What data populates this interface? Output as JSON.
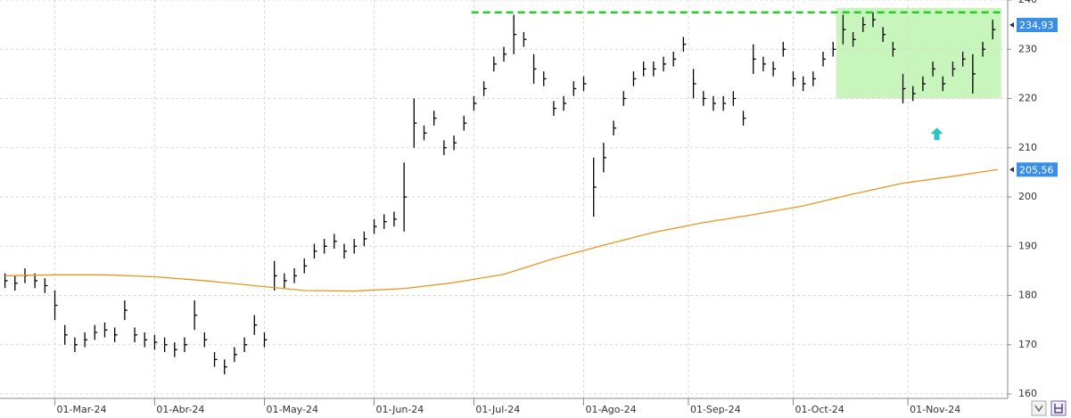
{
  "chart_data": {
    "type": "ohlc",
    "color": "#000000",
    "grid": true,
    "xlim": [
      -11,
      191
    ],
    "ylim": [
      159.1,
      240
    ],
    "yticks": [
      160,
      170,
      180,
      190,
      200,
      210,
      220,
      230,
      240
    ],
    "xticks": [
      {
        "value": 0,
        "label": "01-Mar-24"
      },
      {
        "value": 20,
        "label": "01-Abr-24"
      },
      {
        "value": 42,
        "label": "01-May-24"
      },
      {
        "value": 64,
        "label": "01-Jun-24"
      },
      {
        "value": 84,
        "label": "01-Jul-24"
      },
      {
        "value": 106,
        "label": "01-Ago-24"
      },
      {
        "value": 127,
        "label": "01-Sep-24"
      },
      {
        "value": 148,
        "label": "01-Oct-24"
      },
      {
        "value": 171,
        "label": "01-Nov-24"
      }
    ],
    "x": [
      -10,
      -8,
      -6,
      -4,
      -2,
      0,
      2,
      4,
      6,
      8,
      10,
      12,
      14,
      16,
      18,
      20,
      22,
      24,
      26,
      28,
      30,
      32,
      34,
      36,
      38,
      40,
      42,
      44,
      46,
      48,
      50,
      52,
      54,
      56,
      58,
      60,
      62,
      64,
      66,
      68,
      70,
      72,
      74,
      76,
      78,
      80,
      82,
      84,
      86,
      88,
      90,
      92,
      94,
      96,
      98,
      100,
      102,
      104,
      106,
      108,
      110,
      112,
      114,
      116,
      118,
      120,
      122,
      124,
      126,
      128,
      130,
      132,
      134,
      136,
      138,
      140,
      142,
      144,
      146,
      148,
      150,
      152,
      154,
      156,
      158,
      160,
      162,
      164,
      166,
      168,
      170,
      172,
      174,
      176,
      178,
      180,
      182,
      184,
      186,
      188
    ],
    "high": [
      184.5,
      184,
      185.5,
      184.5,
      183.5,
      181,
      174,
      171.5,
      172.5,
      174,
      174.5,
      173.5,
      179,
      173.5,
      172.5,
      172,
      171.5,
      170.5,
      171.5,
      179,
      172.5,
      168.5,
      167,
      169.5,
      171.5,
      176,
      172.5,
      187,
      184.5,
      185.5,
      187.5,
      190.5,
      191.5,
      192.5,
      190.5,
      191.5,
      193,
      195.5,
      196.5,
      197,
      207,
      220,
      214.5,
      217.5,
      211.5,
      212.5,
      216.5,
      220.5,
      223.5,
      228.5,
      230.5,
      237,
      233.5,
      229,
      225.5,
      219.5,
      220.5,
      223.5,
      224.5,
      208,
      211,
      215.5,
      221.5,
      225.5,
      227.5,
      227.5,
      228.5,
      229.5,
      232.5,
      226,
      221.5,
      220.5,
      220.5,
      221.5,
      217.5,
      231,
      228.5,
      227.5,
      231.5,
      225.5,
      224.5,
      225.5,
      229.5,
      231.5,
      237,
      233.5,
      236.5,
      237.5,
      234.5,
      231.5,
      225,
      222.5,
      224.5,
      227.5,
      224.5,
      227.5,
      229.5,
      229,
      231.5,
      236
    ],
    "low": [
      181.5,
      181,
      182.5,
      181.5,
      180.5,
      175,
      170,
      168.5,
      169.5,
      171,
      171.5,
      170.5,
      175,
      170.5,
      169.5,
      169,
      168.5,
      167.5,
      168.5,
      173,
      169.5,
      165.5,
      164,
      166.5,
      168.5,
      172,
      169.5,
      181,
      181.5,
      182.5,
      184.5,
      187.5,
      188.5,
      189.5,
      187.5,
      188.5,
      190,
      192.5,
      193.5,
      194,
      193,
      210,
      211.5,
      214.5,
      208.5,
      209.5,
      213.5,
      217.5,
      220.5,
      225.5,
      227.5,
      229,
      230.5,
      223,
      222.5,
      216.5,
      217.5,
      220.5,
      221.5,
      196,
      205,
      212.5,
      218.5,
      222.5,
      224.5,
      224.5,
      225.5,
      226.5,
      229.5,
      220,
      218.5,
      217.5,
      217.5,
      218.5,
      214.5,
      225,
      225.5,
      224.5,
      228.5,
      222.5,
      221.5,
      222.5,
      226.5,
      228.5,
      231,
      230.5,
      233.5,
      234.5,
      231.5,
      228.5,
      219,
      219.5,
      221.5,
      224.5,
      221.5,
      224.5,
      226.5,
      221,
      228.5,
      232
    ],
    "close": [
      183,
      182.5,
      184,
      183,
      182,
      178,
      172,
      170,
      171,
      172.5,
      173,
      172,
      177,
      172,
      171,
      170.5,
      170,
      169,
      170,
      176,
      171,
      167,
      165.5,
      168,
      170,
      174,
      171,
      184,
      183,
      184,
      186,
      189,
      190,
      191,
      189,
      190,
      191.5,
      194,
      195,
      195.5,
      200,
      215,
      213,
      216,
      210,
      211,
      215,
      219,
      222,
      227,
      229,
      233,
      232,
      226,
      224,
      218,
      219,
      222,
      223,
      202,
      208,
      214,
      220,
      224,
      226,
      226,
      227,
      228,
      231,
      223,
      220,
      219,
      219,
      220,
      216,
      228,
      227,
      226,
      230,
      224,
      223,
      224,
      228,
      230,
      234,
      232,
      235,
      236,
      233,
      230,
      222,
      221,
      223,
      226,
      223,
      226,
      228,
      225,
      230,
      234
    ],
    "moving_average": {
      "color": "#e8961e",
      "x": [
        -10,
        0,
        10,
        20,
        30,
        40,
        50,
        60,
        70,
        80,
        90,
        100,
        110,
        120,
        130,
        140,
        150,
        160,
        170,
        180,
        189
      ],
      "values": [
        184,
        184.2,
        184.2,
        183.8,
        183,
        182,
        181,
        180.9,
        181.4,
        182.6,
        184.3,
        187.5,
        190.2,
        192.8,
        194.8,
        196.4,
        198.2,
        200.6,
        202.8,
        204.2,
        205.56
      ],
      "value_label": "205,56"
    },
    "last_price": {
      "value": 234.93,
      "label": "234,93"
    },
    "resistance": {
      "y": 237.5,
      "x": [
        83.5,
        189.5
      ],
      "color": "#22cc22"
    },
    "zone": {
      "x": [
        156.6,
        189.7
      ],
      "y": [
        220,
        238.4
      ],
      "color": "#c8f5bc"
    },
    "arrow": {
      "x": 176.8,
      "y": 212.8,
      "color": "#2ec4c4"
    }
  }
}
